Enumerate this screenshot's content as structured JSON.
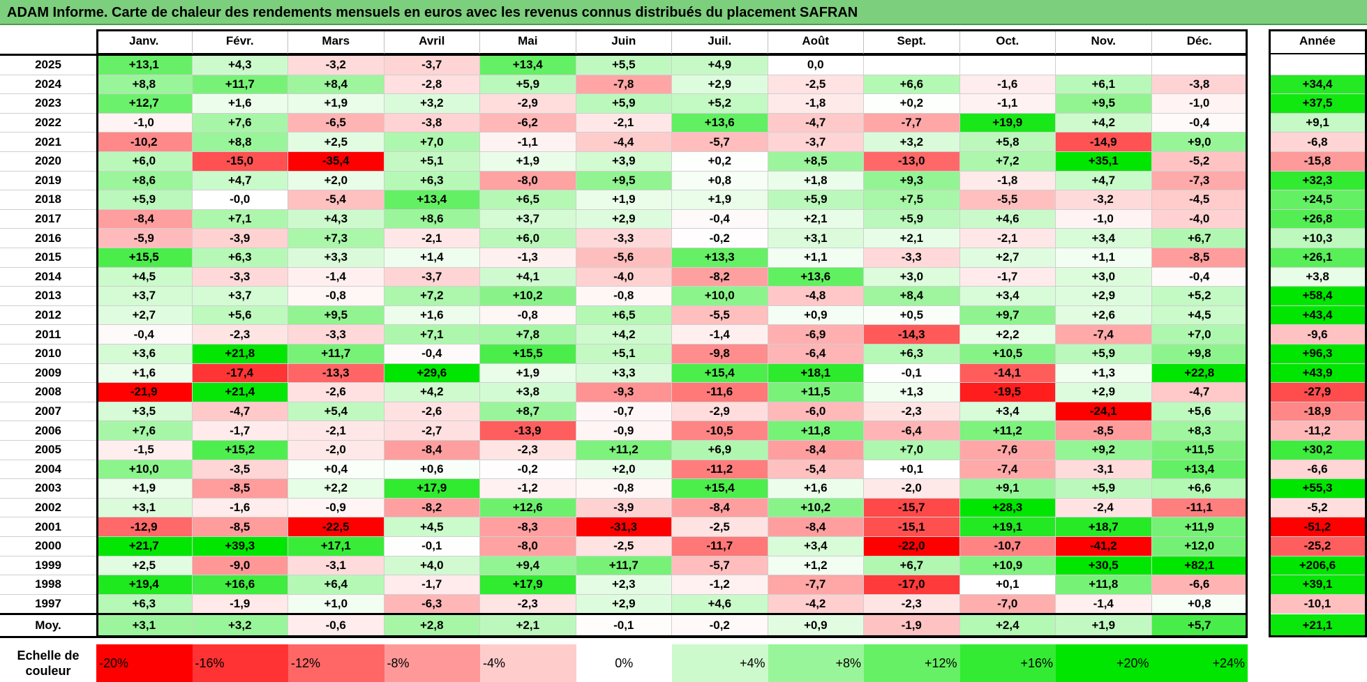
{
  "title": "ADAM Informe. Carte de chaleur des rendements mensuels en euros avec les revenus connus distribués du placement SAFRAN",
  "chart_data": {
    "type": "heatmap",
    "columns": [
      "Janv.",
      "Févr.",
      "Mars",
      "Avril",
      "Mai",
      "Juin",
      "Juil.",
      "Août",
      "Sept.",
      "Oct.",
      "Nov.",
      "Déc."
    ],
    "annual_header": "Année",
    "rows": [
      {
        "year": "2025",
        "values": [
          "+13,1",
          "+4,3",
          "-3,2",
          "-3,7",
          "+13,4",
          "+5,5",
          "+4,9",
          "0,0",
          "",
          "",
          "",
          ""
        ],
        "annual": ""
      },
      {
        "year": "2024",
        "values": [
          "+8,8",
          "+11,7",
          "+8,4",
          "-2,8",
          "+5,9",
          "-7,8",
          "+2,9",
          "-2,5",
          "+6,6",
          "-1,6",
          "+6,1",
          "-3,8"
        ],
        "annual": "+34,4"
      },
      {
        "year": "2023",
        "values": [
          "+12,7",
          "+1,6",
          "+1,9",
          "+3,2",
          "-2,9",
          "+5,9",
          "+5,2",
          "-1,8",
          "+0,2",
          "-1,1",
          "+9,5",
          "-1,0"
        ],
        "annual": "+37,5"
      },
      {
        "year": "2022",
        "values": [
          "-1,0",
          "+7,6",
          "-6,5",
          "-3,8",
          "-6,2",
          "-2,1",
          "+13,6",
          "-4,7",
          "-7,7",
          "+19,9",
          "+4,2",
          "-0,4"
        ],
        "annual": "+9,1"
      },
      {
        "year": "2021",
        "values": [
          "-10,2",
          "+8,8",
          "+2,5",
          "+7,0",
          "-1,1",
          "-4,4",
          "-5,7",
          "-3,7",
          "+3,2",
          "+5,8",
          "-14,9",
          "+9,0"
        ],
        "annual": "-6,8"
      },
      {
        "year": "2020",
        "values": [
          "+6,0",
          "-15,0",
          "-35,4",
          "+5,1",
          "+1,9",
          "+3,9",
          "+0,2",
          "+8,5",
          "-13,0",
          "+7,2",
          "+35,1",
          "-5,2"
        ],
        "annual": "-15,8"
      },
      {
        "year": "2019",
        "values": [
          "+8,6",
          "+4,7",
          "+2,0",
          "+6,3",
          "-8,0",
          "+9,5",
          "+0,8",
          "+1,8",
          "+9,3",
          "-1,8",
          "+4,7",
          "-7,3"
        ],
        "annual": "+32,3"
      },
      {
        "year": "2018",
        "values": [
          "+5,9",
          "-0,0",
          "-5,4",
          "+13,4",
          "+6,5",
          "+1,9",
          "+1,9",
          "+5,9",
          "+7,5",
          "-5,5",
          "-3,2",
          "-4,5"
        ],
        "annual": "+24,5"
      },
      {
        "year": "2017",
        "values": [
          "-8,4",
          "+7,1",
          "+4,3",
          "+8,6",
          "+3,7",
          "+2,9",
          "-0,4",
          "+2,1",
          "+5,9",
          "+4,6",
          "-1,0",
          "-4,0"
        ],
        "annual": "+26,8"
      },
      {
        "year": "2016",
        "values": [
          "-5,9",
          "-3,9",
          "+7,3",
          "-2,1",
          "+6,0",
          "-3,3",
          "-0,2",
          "+3,1",
          "+2,1",
          "-2,1",
          "+3,4",
          "+6,7"
        ],
        "annual": "+10,3"
      },
      {
        "year": "2015",
        "values": [
          "+15,5",
          "+6,3",
          "+3,3",
          "+1,4",
          "-1,3",
          "-5,6",
          "+13,3",
          "+1,1",
          "-3,3",
          "+2,7",
          "+1,1",
          "-8,5"
        ],
        "annual": "+26,1"
      },
      {
        "year": "2014",
        "values": [
          "+4,5",
          "-3,3",
          "-1,4",
          "-3,7",
          "+4,1",
          "-4,0",
          "-8,2",
          "+13,6",
          "+3,0",
          "-1,7",
          "+3,0",
          "-0,4"
        ],
        "annual": "+3,8"
      },
      {
        "year": "2013",
        "values": [
          "+3,7",
          "+3,7",
          "-0,8",
          "+7,2",
          "+10,2",
          "-0,8",
          "+10,0",
          "-4,8",
          "+8,4",
          "+3,4",
          "+2,9",
          "+5,2"
        ],
        "annual": "+58,4"
      },
      {
        "year": "2012",
        "values": [
          "+2,7",
          "+5,6",
          "+9,5",
          "+1,6",
          "-0,8",
          "+6,5",
          "-5,5",
          "+0,9",
          "+0,5",
          "+9,7",
          "+2,6",
          "+4,5"
        ],
        "annual": "+43,4"
      },
      {
        "year": "2011",
        "values": [
          "-0,4",
          "-2,3",
          "-3,3",
          "+7,1",
          "+7,8",
          "+4,2",
          "-1,4",
          "-6,9",
          "-14,3",
          "+2,2",
          "-7,4",
          "+7,0"
        ],
        "annual": "-9,6"
      },
      {
        "year": "2010",
        "values": [
          "+3,6",
          "+21,8",
          "+11,7",
          "-0,4",
          "+15,5",
          "+5,1",
          "-9,8",
          "-6,4",
          "+6,3",
          "+10,5",
          "+5,9",
          "+9,8"
        ],
        "annual": "+96,3"
      },
      {
        "year": "2009",
        "values": [
          "+1,6",
          "-17,4",
          "-13,3",
          "+29,6",
          "+1,9",
          "+3,3",
          "+15,4",
          "+18,1",
          "-0,1",
          "-14,1",
          "+1,3",
          "+22,8"
        ],
        "annual": "+43,9"
      },
      {
        "year": "2008",
        "values": [
          "-21,9",
          "+21,4",
          "-2,6",
          "+4,2",
          "+3,8",
          "-9,3",
          "-11,6",
          "+11,5",
          "+1,3",
          "-19,5",
          "+2,9",
          "-4,7"
        ],
        "annual": "-27,9"
      },
      {
        "year": "2007",
        "values": [
          "+3,5",
          "-4,7",
          "+5,4",
          "-2,6",
          "+8,7",
          "-0,7",
          "-2,9",
          "-6,0",
          "-2,3",
          "+3,4",
          "-24,1",
          "+5,6"
        ],
        "annual": "-18,9"
      },
      {
        "year": "2006",
        "values": [
          "+7,6",
          "-1,7",
          "-2,1",
          "-2,7",
          "-13,9",
          "-0,9",
          "-10,5",
          "+11,8",
          "-6,4",
          "+11,2",
          "-8,5",
          "+8,3"
        ],
        "annual": "-11,2"
      },
      {
        "year": "2005",
        "values": [
          "-1,5",
          "+15,2",
          "-2,0",
          "-8,4",
          "-2,3",
          "+11,2",
          "+6,9",
          "-8,4",
          "+7,0",
          "-7,6",
          "+9,2",
          "+11,5"
        ],
        "annual": "+30,2"
      },
      {
        "year": "2004",
        "values": [
          "+10,0",
          "-3,5",
          "+0,4",
          "+0,6",
          "-0,2",
          "+2,0",
          "-11,2",
          "-5,4",
          "+0,1",
          "-7,4",
          "-3,1",
          "+13,4"
        ],
        "annual": "-6,6"
      },
      {
        "year": "2003",
        "values": [
          "+1,9",
          "-8,5",
          "+2,2",
          "+17,9",
          "-1,2",
          "-0,8",
          "+15,4",
          "+1,6",
          "-2,0",
          "+9,1",
          "+5,9",
          "+6,6"
        ],
        "annual": "+55,3"
      },
      {
        "year": "2002",
        "values": [
          "+3,1",
          "-1,6",
          "-0,9",
          "-8,2",
          "+12,6",
          "-3,9",
          "-8,4",
          "+10,2",
          "-15,7",
          "+28,3",
          "-2,4",
          "-11,1"
        ],
        "annual": "-5,2"
      },
      {
        "year": "2001",
        "values": [
          "-12,9",
          "-8,5",
          "-22,5",
          "+4,5",
          "-8,3",
          "-31,3",
          "-2,5",
          "-8,4",
          "-15,1",
          "+19,1",
          "+18,7",
          "+11,9"
        ],
        "annual": "-51,2"
      },
      {
        "year": "2000",
        "values": [
          "+21,7",
          "+39,3",
          "+17,1",
          "-0,1",
          "-8,0",
          "-2,5",
          "-11,7",
          "+3,4",
          "-22,0",
          "-10,7",
          "-41,2",
          "+12,0"
        ],
        "annual": "-25,2"
      },
      {
        "year": "1999",
        "values": [
          "+2,5",
          "-9,0",
          "-3,1",
          "+4,0",
          "+9,4",
          "+11,7",
          "-5,7",
          "+1,2",
          "+6,7",
          "+10,9",
          "+30,5",
          "+82,1"
        ],
        "annual": "+206,6"
      },
      {
        "year": "1998",
        "values": [
          "+19,4",
          "+16,6",
          "+6,4",
          "-1,7",
          "+17,9",
          "+2,3",
          "-1,2",
          "-7,7",
          "-17,0",
          "+0,1",
          "+11,8",
          "-6,6"
        ],
        "annual": "+39,1"
      },
      {
        "year": "1997",
        "values": [
          "+6,3",
          "-1,9",
          "+1,0",
          "-6,3",
          "-2,3",
          "+2,9",
          "+4,6",
          "-4,2",
          "-2,3",
          "-7,0",
          "-1,4",
          "+0,8"
        ],
        "annual": "-10,1"
      }
    ],
    "average": {
      "label": "Moy.",
      "values": [
        "+3,1",
        "+3,2",
        "-0,6",
        "+2,8",
        "+2,1",
        "-0,1",
        "-0,2",
        "+0,9",
        "-1,9",
        "+2,4",
        "+1,9",
        "+5,7"
      ],
      "annual": "+21,1"
    },
    "color_scale": {
      "title": "Echelle de couleur",
      "stops": [
        "-20%",
        "-16%",
        "-12%",
        "-8%",
        "-4%",
        "0%",
        "+4%",
        "+8%",
        "+12%",
        "+16%",
        "+20%",
        "+24%"
      ],
      "negative_color": "#ff0000",
      "neutral_color": "#ffffff",
      "positive_color": "#00e600"
    }
  }
}
